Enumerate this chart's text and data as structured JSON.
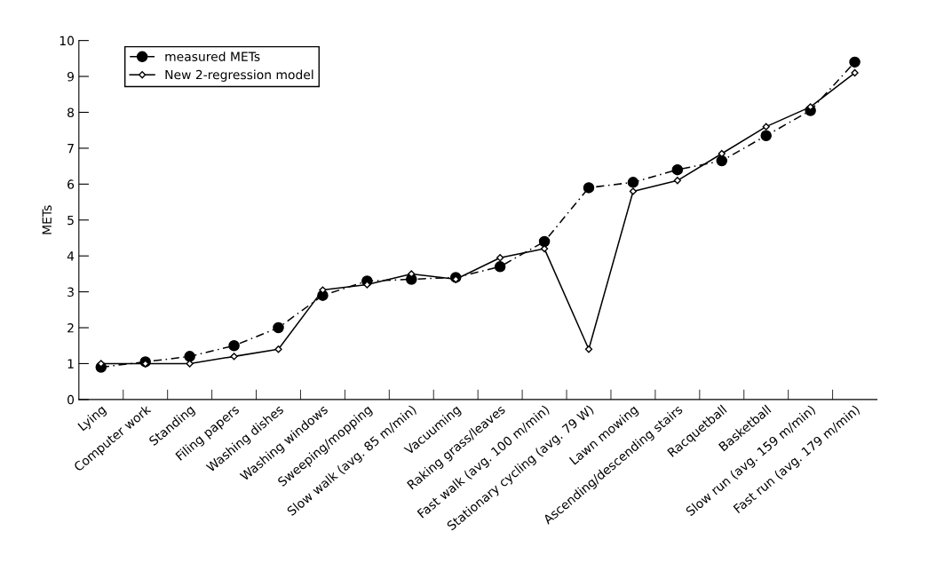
{
  "chart_data": {
    "type": "line",
    "ylabel": "METs",
    "categories": [
      "Lying",
      "Computer work",
      "Standing",
      "Filing papers",
      "Washing dishes",
      "Washing windows",
      "Sweeping/mopping",
      "Slow walk (avg. 85 m/min)",
      "Vacuuming",
      "Raking grass/leaves",
      "Fast walk (avg. 100 m/min)",
      "Stationary cycling (avg. 79 W)",
      "Lawn mowing",
      "Ascending/descending stairs",
      "Racquetball",
      "Basketball",
      "Slow run (avg. 159 m/min)",
      "Fast run (avg. 179 m/min)"
    ],
    "series": [
      {
        "name": "measured METs",
        "color": "#000000",
        "marker": "circle",
        "line_style": "dashed",
        "values": [
          0.9,
          1.05,
          1.2,
          1.5,
          2.0,
          2.9,
          3.3,
          3.35,
          3.4,
          3.7,
          4.4,
          5.9,
          6.05,
          6.4,
          6.65,
          7.35,
          8.05,
          9.4
        ]
      },
      {
        "name": "New 2-regression model",
        "color": "#000000",
        "marker": "diamond",
        "line_style": "solid",
        "values": [
          1.0,
          1.0,
          1.0,
          1.2,
          1.4,
          3.05,
          3.2,
          3.5,
          3.35,
          3.95,
          4.2,
          1.4,
          5.8,
          6.1,
          6.85,
          7.6,
          8.15,
          9.1
        ]
      }
    ],
    "ylim": [
      0,
      10
    ],
    "yticks": [
      0,
      1,
      2,
      3,
      4,
      5,
      6,
      7,
      8,
      9,
      10
    ],
    "grid": false,
    "legend": "top left"
  }
}
